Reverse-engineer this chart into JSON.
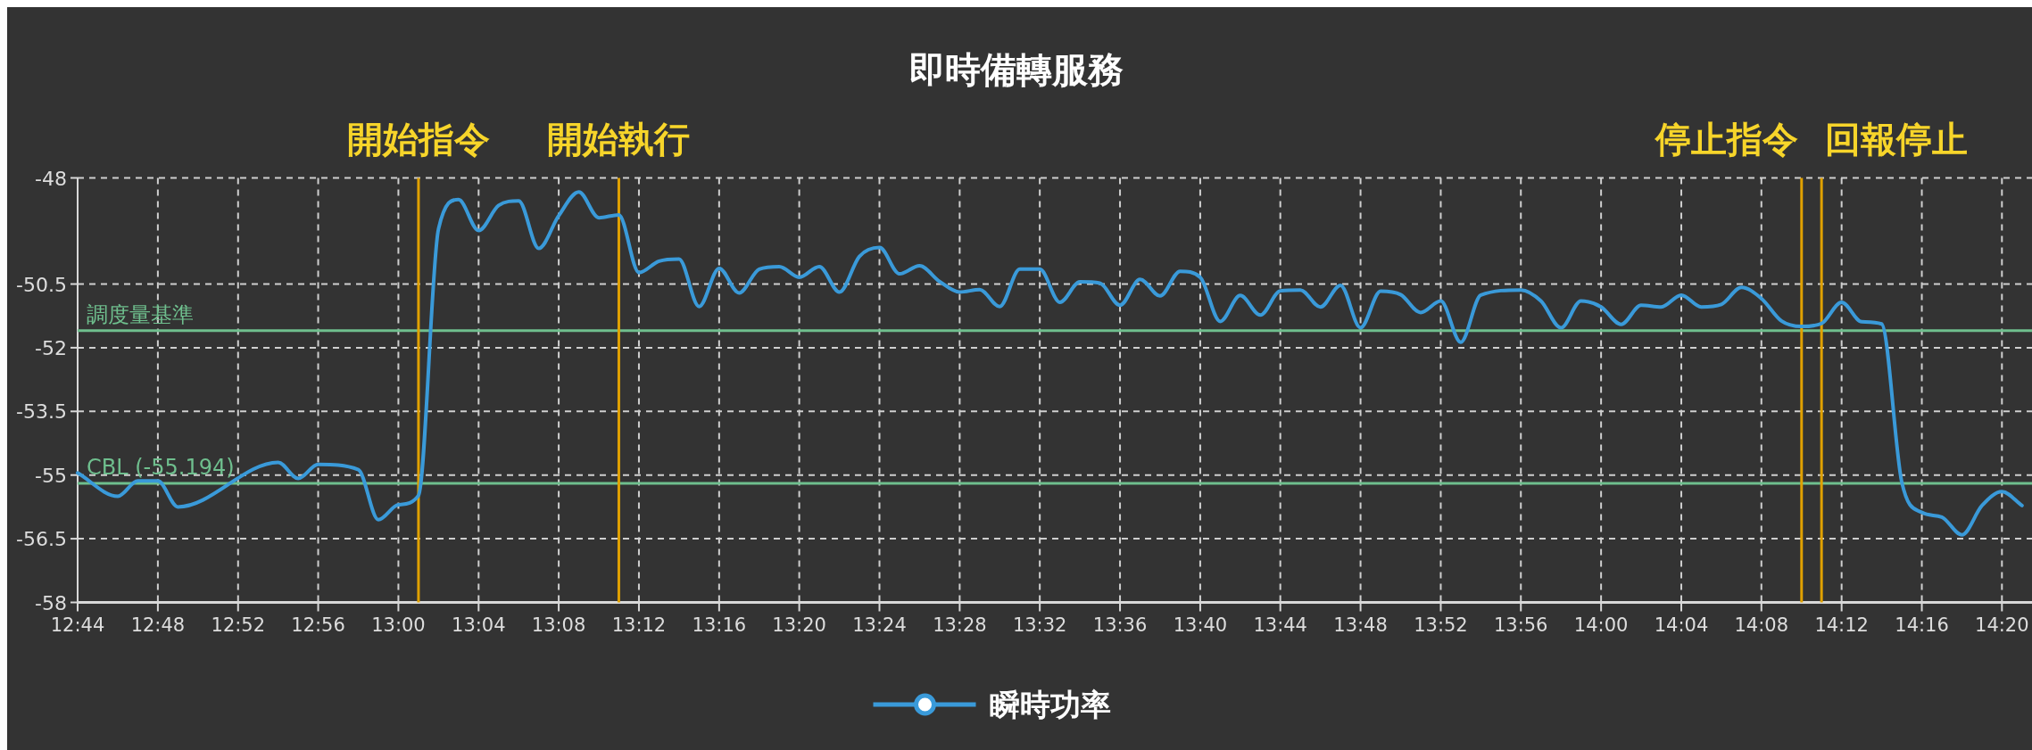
{
  "chart_data": {
    "type": "line",
    "title": "即時備轉服務",
    "x": [
      12.7333,
      12.7667,
      12.7833,
      12.8,
      12.8167,
      12.9,
      12.9167,
      12.9333,
      12.9667,
      12.9833,
      13,
      13.0167,
      13.0333,
      13.05,
      13.0667,
      13.0833,
      13.1,
      13.1167,
      13.1333,
      13.15,
      13.1667,
      13.1833,
      13.2,
      13.2167,
      13.2333,
      13.25,
      13.2667,
      13.2833,
      13.3,
      13.3167,
      13.3333,
      13.35,
      13.3667,
      13.3833,
      13.4,
      13.4167,
      13.4333,
      13.45,
      13.4667,
      13.4833,
      13.5,
      13.5167,
      13.5333,
      13.55,
      13.5667,
      13.5833,
      13.6,
      13.6167,
      13.6333,
      13.65,
      13.6667,
      13.6833,
      13.7,
      13.7167,
      13.7333,
      13.75,
      13.7667,
      13.7833,
      13.8,
      13.8167,
      13.8333,
      13.85,
      13.8667,
      13.8833,
      13.9,
      13.9333,
      13.95,
      13.9667,
      13.9833,
      14,
      14.0167,
      14.0333,
      14.05,
      14.0667,
      14.0833,
      14.1,
      14.1167,
      14.1333,
      14.15,
      14.1667,
      14.1833,
      14.2,
      14.2167,
      14.2333,
      14.25,
      14.2667,
      14.2833,
      14.3,
      14.3167,
      14.3333,
      14.35
    ],
    "series": [
      {
        "name": "瞬時功率",
        "color": "#3a9ad9",
        "values": [
          -54.95,
          -55.5,
          -55.14,
          -55.14,
          -55.75,
          -54.7,
          -55.08,
          -54.75,
          -54.87,
          -56.05,
          -55.7,
          -55.48,
          -49.21,
          -48.51,
          -49.24,
          -48.65,
          -48.54,
          -49.66,
          -48.89,
          -48.33,
          -48.94,
          -48.87,
          -50.23,
          -49.96,
          -49.91,
          -51.03,
          -50.13,
          -50.71,
          -50.15,
          -50.09,
          -50.34,
          -50.09,
          -50.69,
          -49.85,
          -49.64,
          -50.26,
          -50.07,
          -50.44,
          -50.69,
          -50.63,
          -51.03,
          -50.15,
          -50.15,
          -50.93,
          -50.45,
          -50.48,
          -51,
          -50.39,
          -50.78,
          -50.2,
          -50.34,
          -51.38,
          -50.77,
          -51.23,
          -50.66,
          -50.64,
          -51.04,
          -50.53,
          -51.53,
          -50.67,
          -50.75,
          -51.17,
          -50.9,
          -51.87,
          -50.76,
          -50.64,
          -50.9,
          -51.53,
          -50.9,
          -51.04,
          -51.45,
          -51,
          -51.04,
          -50.76,
          -51.04,
          -50.98,
          -50.58,
          -50.84,
          -51.37,
          -51.5,
          -51.43,
          -50.93,
          -51.39,
          -51.44,
          -55.16,
          -55.88,
          -55.99,
          -56.41,
          -55.72,
          -55.39,
          -55.72
        ]
      }
    ],
    "xlim": [
      12.7333,
      14.3583
    ],
    "xticks": [
      {
        "value": 12.7333,
        "label": "12:44"
      },
      {
        "value": 12.8,
        "label": "12:48"
      },
      {
        "value": 12.8667,
        "label": "12:52"
      },
      {
        "value": 12.9333,
        "label": "12:56"
      },
      {
        "value": 13,
        "label": "13:00"
      },
      {
        "value": 13.0667,
        "label": "13:04"
      },
      {
        "value": 13.1333,
        "label": "13:08"
      },
      {
        "value": 13.2,
        "label": "13:12"
      },
      {
        "value": 13.2667,
        "label": "13:16"
      },
      {
        "value": 13.3333,
        "label": "13:20"
      },
      {
        "value": 13.4,
        "label": "13:24"
      },
      {
        "value": 13.4667,
        "label": "13:28"
      },
      {
        "value": 13.5333,
        "label": "13:32"
      },
      {
        "value": 13.6,
        "label": "13:36"
      },
      {
        "value": 13.6667,
        "label": "13:40"
      },
      {
        "value": 13.7333,
        "label": "13:44"
      },
      {
        "value": 13.8,
        "label": "13:48"
      },
      {
        "value": 13.8667,
        "label": "13:52"
      },
      {
        "value": 13.9333,
        "label": "13:56"
      },
      {
        "value": 14,
        "label": "14:00"
      },
      {
        "value": 14.0667,
        "label": "14:04"
      },
      {
        "value": 14.1333,
        "label": "14:08"
      },
      {
        "value": 14.2,
        "label": "14:12"
      },
      {
        "value": 14.2667,
        "label": "14:16"
      },
      {
        "value": 14.3333,
        "label": "14:20"
      }
    ],
    "ylim": [
      -58,
      -48
    ],
    "yticks": [
      -48,
      -50.5,
      -52,
      -53.5,
      -55,
      -56.5,
      -58
    ],
    "grid": true,
    "legend": "bottom",
    "ref_lines": [
      {
        "axis": "y",
        "value": -51.6,
        "label": "調度量基準",
        "color": "#6fbf8e"
      },
      {
        "axis": "y",
        "value": -55.194,
        "label": "CBL (-55.194)",
        "color": "#6fbf8e"
      },
      {
        "axis": "x",
        "value": 13.0167,
        "label": "開始指令",
        "color": "#e0a100"
      },
      {
        "axis": "x",
        "value": 13.1833,
        "label": "開始執行",
        "color": "#e0a100"
      },
      {
        "axis": "x",
        "value": 14.1667,
        "label": "停止指令",
        "color": "#e0a100"
      },
      {
        "axis": "x",
        "value": 14.1833,
        "label": "回報停止",
        "color": "#e0a100"
      }
    ]
  }
}
